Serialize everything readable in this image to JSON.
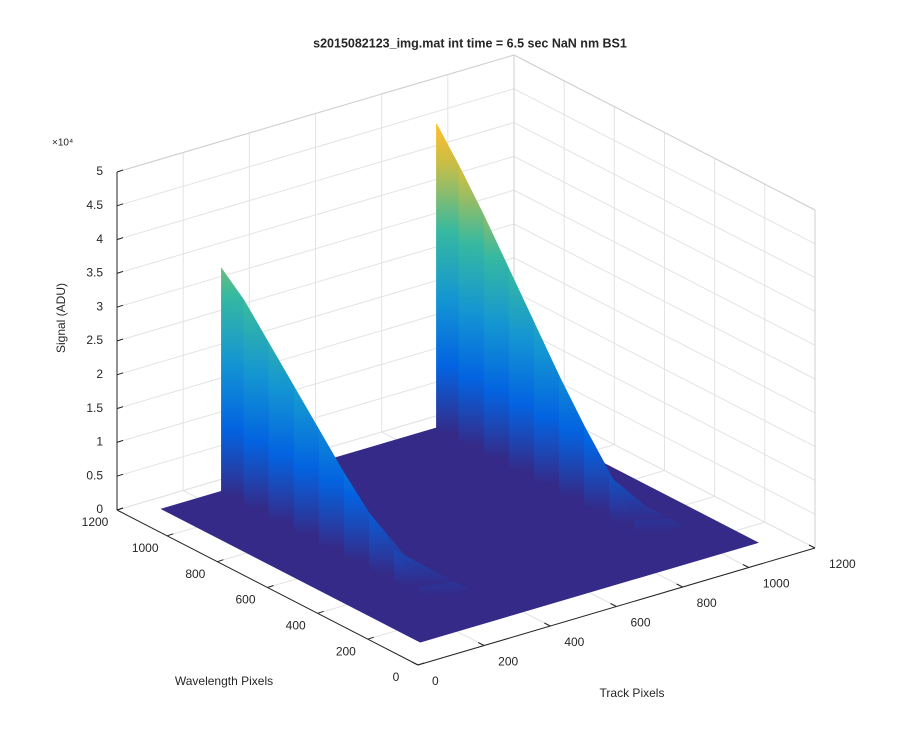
{
  "chart_data": {
    "type": "surface",
    "title": "s2015082123_img.mat int time = 6.5 sec  NaN nm BS1",
    "x_label": "Track Pixels",
    "y_label": "Wavelength Pixels",
    "z_label": "Signal (ADU)",
    "z_exponent": "×10⁴",
    "xlim": [
      0,
      1200
    ],
    "ylim": [
      0,
      1200
    ],
    "zlim": [
      0,
      5
    ],
    "xticks": [
      0,
      200,
      400,
      600,
      800,
      1000,
      1200
    ],
    "yticks": [
      0,
      200,
      400,
      600,
      800,
      1000,
      1200
    ],
    "zticks": [
      0,
      0.5,
      1,
      1.5,
      2,
      2.5,
      3,
      3.5,
      4,
      4.5,
      5
    ],
    "grid": true,
    "colormap": "parula",
    "floor": {
      "x": [
        90,
        1110
      ],
      "y": [
        110,
        1140
      ]
    },
    "y": [
      1140,
      1050,
      950,
      850,
      750,
      650,
      550,
      450,
      350,
      300
    ],
    "ridges": [
      {
        "x": 920,
        "values": [
          4.5,
          4.05,
          3.5,
          2.9,
          2.3,
          1.7,
          1.15,
          0.6,
          0.15,
          0
        ]
      },
      {
        "x": 270,
        "values": [
          3.3,
          3.0,
          2.55,
          2.1,
          1.65,
          1.2,
          0.8,
          0.45,
          0.1,
          0
        ]
      }
    ]
  }
}
